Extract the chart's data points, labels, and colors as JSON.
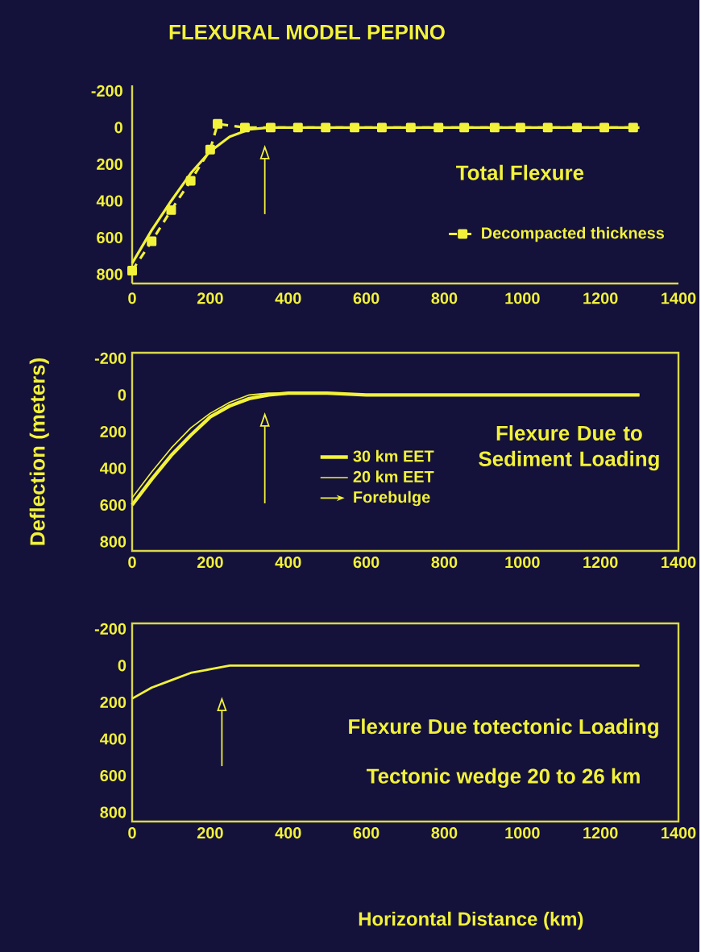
{
  "chart_data": [
    {
      "type": "line",
      "title": "FLEXURAL MODEL PEPINO",
      "annotations": [
        "Total Flexure"
      ],
      "legend": "bottom right",
      "xlim": [
        0,
        1400
      ],
      "ylim": [
        850,
        -230
      ],
      "xticks": [
        0,
        200,
        400,
        600,
        800,
        1000,
        1200,
        1400
      ],
      "yticks": [
        -200,
        0,
        200,
        400,
        600,
        800
      ],
      "series": [
        {
          "color": "#f2f23a",
          "line_style": "solid",
          "marker": "none",
          "x": [
            0,
            50,
            100,
            150,
            200,
            250,
            300,
            350,
            400,
            1300
          ],
          "values": [
            740,
            560,
            400,
            250,
            130,
            50,
            10,
            0,
            0,
            0
          ]
        },
        {
          "name": "Decompacted thickness",
          "color": "#f2f23a",
          "line_style": "dashed",
          "marker": "square",
          "x": [
            0,
            50,
            100,
            150,
            200,
            219,
            289,
            355,
            425,
            496,
            570,
            640,
            714,
            785,
            851,
            929,
            995,
            1065,
            1140,
            1210,
            1284
          ],
          "values": [
            780,
            620,
            450,
            290,
            120,
            -20,
            0,
            0,
            0,
            0,
            0,
            0,
            0,
            0,
            0,
            0,
            0,
            0,
            0,
            0,
            0
          ]
        }
      ],
      "ref_lines": [
        {
          "axis": "x",
          "value": 340,
          "color": "#f2f23a"
        }
      ]
    },
    {
      "type": "line",
      "ylabel": "Deflection (meters)",
      "annotations": [
        "Flexure Due to Sediment Loading"
      ],
      "legend": "center",
      "xlim": [
        0,
        1400
      ],
      "ylim": [
        850,
        -230
      ],
      "xticks": [
        0,
        200,
        400,
        600,
        800,
        1000,
        1200,
        1400
      ],
      "yticks": [
        -200,
        0,
        200,
        400,
        600,
        800
      ],
      "series": [
        {
          "name": "30 km EET",
          "color": "#f2f23a",
          "line_style": "solid",
          "marker": "none",
          "x": [
            0,
            50,
            100,
            150,
            200,
            250,
            300,
            350,
            400,
            500,
            600,
            1300
          ],
          "values": [
            600,
            460,
            330,
            220,
            120,
            60,
            20,
            0,
            -10,
            -10,
            0,
            0
          ]
        },
        {
          "name": "20 km EET",
          "color": "#f2f23a",
          "line_style": "solid",
          "marker": "none",
          "x": [
            0,
            50,
            100,
            150,
            200,
            250,
            300,
            350,
            400,
            500,
            600,
            1300
          ],
          "values": [
            560,
            420,
            290,
            180,
            100,
            40,
            0,
            -10,
            -10,
            -10,
            0,
            0
          ]
        }
      ],
      "ref_lines": [
        {
          "axis": "x",
          "value": 340,
          "label": "Forebulge",
          "color": "#f2f23a"
        }
      ]
    },
    {
      "type": "line",
      "xlabel": "Horizontal Distance (km)",
      "annotations": [
        "Flexure Due totectonic Loading",
        "Tectonic wedge 20 to 26 km"
      ],
      "xlim": [
        0,
        1400
      ],
      "ylim": [
        850,
        -230
      ],
      "xticks": [
        0,
        200,
        400,
        600,
        800,
        1000,
        1200,
        1400
      ],
      "yticks": [
        -200,
        0,
        200,
        400,
        600,
        800
      ],
      "series": [
        {
          "color": "#f2f23a",
          "line_style": "solid",
          "marker": "none",
          "x": [
            0,
            50,
            100,
            150,
            200,
            250,
            300,
            400,
            1300
          ],
          "values": [
            180,
            120,
            80,
            40,
            20,
            0,
            0,
            0,
            0
          ]
        }
      ],
      "ref_lines": [
        {
          "axis": "x",
          "value": 230,
          "color": "#f2f23a"
        }
      ]
    }
  ]
}
